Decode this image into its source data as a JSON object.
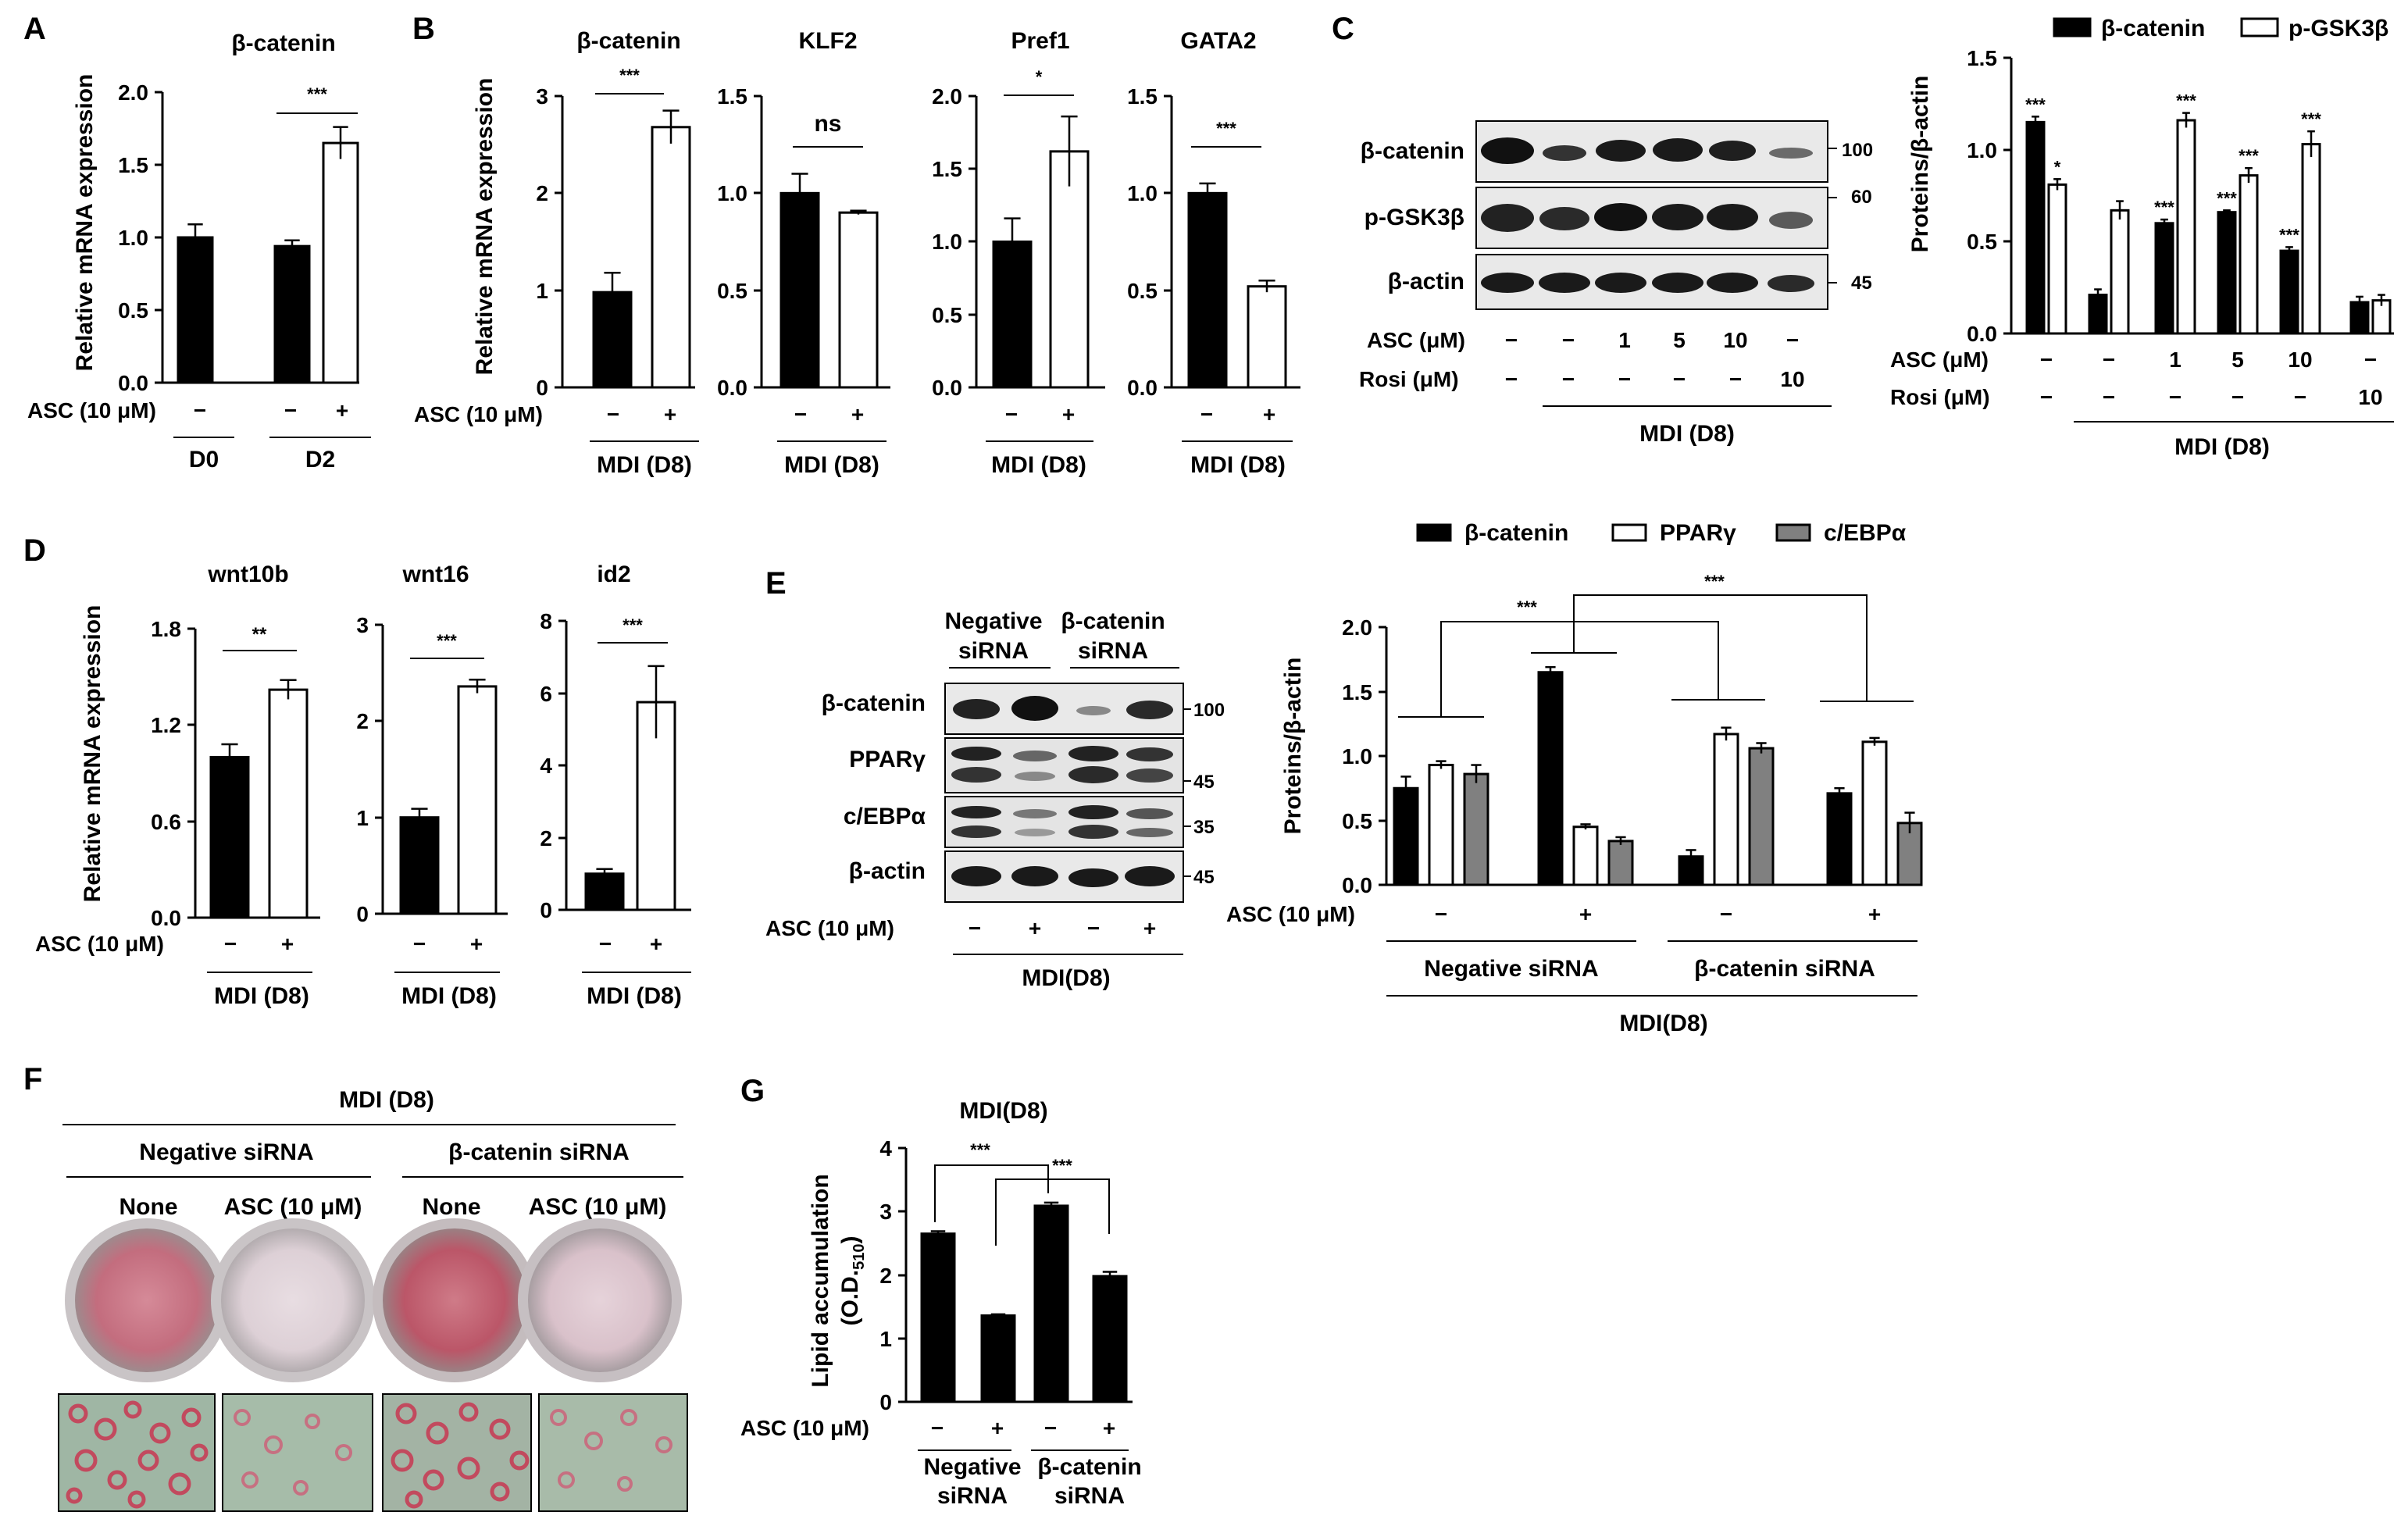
{
  "panel_letters": {
    "a": "A",
    "b": "B",
    "c": "C",
    "d": "D",
    "e": "E",
    "f": "F",
    "g": "G"
  },
  "y_label_rel_mrna": "Relative mRNA expression",
  "y_label_proteins": "Proteins/β-actin",
  "y_label_lipid": "Lipid accumulation",
  "y_label_lipid_unit": "(O.D.",
  "y_label_lipid_sub": "510",
  "y_label_lipid_close": ")",
  "asc_label": "ASC (10 μM)",
  "asc_um_label": "ASC (μM)",
  "rosi_um_label": "Rosi (μM)",
  "mdi_d8": "MDI (D8)",
  "mdi_d8_nospace": "MDI(D8)",
  "minus": "−",
  "plus": "+",
  "sig": {
    "one": "*",
    "two": "**",
    "three": "***",
    "ns": "ns"
  },
  "siRNA": {
    "negative": "Negative siRNA",
    "beta": "β-catenin siRNA",
    "negative_l1": "Negative",
    "negative_l2": "siRNA",
    "beta_l1": "β-catenin",
    "beta_l2": "siRNA"
  },
  "colors": {
    "black": "#000000",
    "white": "#ffffff",
    "gray": "#808080"
  },
  "chart_data": [
    {
      "id": "A",
      "type": "bar",
      "title": "β-catenin",
      "ylabel": "Relative mRNA expression",
      "ylim": [
        0,
        2.0
      ],
      "yticks": [
        "0.0",
        "0.5",
        "1.0",
        "1.5",
        "2.0"
      ],
      "groups": [
        "D0",
        "D2"
      ],
      "asc": [
        "−",
        "−",
        "+"
      ],
      "bars": [
        {
          "value": 1.0,
          "err": 0.09,
          "fill": "black"
        },
        {
          "value": 0.94,
          "err": 0.04,
          "fill": "black"
        },
        {
          "value": 1.65,
          "err": 0.11,
          "fill": "white"
        }
      ],
      "significance": "***"
    },
    {
      "id": "B1",
      "type": "bar",
      "title": "β-catenin",
      "ylabel": "Relative mRNA expression",
      "ylim": [
        0,
        3
      ],
      "yticks": [
        "0",
        "1",
        "2",
        "3"
      ],
      "group": "MDI (D8)",
      "bars": [
        {
          "value": 0.98,
          "err": 0.2,
          "fill": "black"
        },
        {
          "value": 2.68,
          "err": 0.17,
          "fill": "white"
        }
      ],
      "significance": "***"
    },
    {
      "id": "B2",
      "type": "bar",
      "title": "KLF2",
      "ylim": [
        0,
        1.5
      ],
      "yticks": [
        "0.0",
        "0.5",
        "1.0",
        "1.5"
      ],
      "group": "MDI (D8)",
      "bars": [
        {
          "value": 1.0,
          "err": 0.1,
          "fill": "black"
        },
        {
          "value": 0.9,
          "err": 0.01,
          "fill": "white"
        }
      ],
      "significance": "ns"
    },
    {
      "id": "B3",
      "type": "bar",
      "title": "Pref1",
      "ylim": [
        0,
        2.0
      ],
      "yticks": [
        "0.0",
        "0.5",
        "1.0",
        "1.5",
        "2.0"
      ],
      "group": "MDI (D8)",
      "bars": [
        {
          "value": 1.0,
          "err": 0.16,
          "fill": "black"
        },
        {
          "value": 1.62,
          "err": 0.24,
          "fill": "white"
        }
      ],
      "significance": "*"
    },
    {
      "id": "B4",
      "type": "bar",
      "title": "GATA2",
      "ylim": [
        0,
        1.5
      ],
      "yticks": [
        "0.0",
        "0.5",
        "1.0",
        "1.5"
      ],
      "group": "MDI (D8)",
      "bars": [
        {
          "value": 1.0,
          "err": 0.05,
          "fill": "black"
        },
        {
          "value": 0.52,
          "err": 0.03,
          "fill": "white"
        }
      ],
      "significance": "***"
    },
    {
      "id": "C-blot",
      "type": "western-blot",
      "bands": [
        "β-catenin",
        "p-GSK3β",
        "β-actin"
      ],
      "mw": [
        "100",
        "60",
        "45"
      ],
      "asc_um": [
        "−",
        "−",
        "1",
        "5",
        "10",
        "−"
      ],
      "rosi_um": [
        "−",
        "−",
        "−",
        "−",
        "−",
        "10"
      ],
      "group": "MDI (D8)"
    },
    {
      "id": "C",
      "type": "bar",
      "ylabel": "Proteins/β-actin",
      "ylim": [
        0,
        1.5
      ],
      "yticks": [
        "0.0",
        "0.5",
        "1.0",
        "1.5"
      ],
      "legend": [
        "β-catenin",
        "p-GSK3β"
      ],
      "legend_position": "top",
      "asc_um": [
        "−",
        "−",
        "1",
        "5",
        "10",
        "−"
      ],
      "rosi_um": [
        "−",
        "−",
        "−",
        "−",
        "−",
        "10"
      ],
      "group": "MDI (D8)",
      "series": [
        {
          "name": "β-catenin",
          "fill": "black",
          "values": [
            1.15,
            0.21,
            0.6,
            0.66,
            0.45,
            0.17
          ],
          "err": [
            0.03,
            0.03,
            0.02,
            0.01,
            0.02,
            0.03
          ],
          "sig": [
            "***",
            "",
            "***",
            "***",
            "***",
            ""
          ]
        },
        {
          "name": "p-GSK3β",
          "fill": "white",
          "values": [
            0.81,
            0.67,
            1.16,
            0.86,
            1.03,
            0.18
          ],
          "err": [
            0.03,
            0.05,
            0.04,
            0.04,
            0.07,
            0.03
          ],
          "sig": [
            "*",
            "",
            "***",
            "***",
            "***",
            ""
          ]
        }
      ]
    },
    {
      "id": "D1",
      "type": "bar",
      "title": "wnt10b",
      "ylabel": "Relative mRNA expression",
      "ylim": [
        0,
        1.8
      ],
      "yticks": [
        "0.0",
        "0.6",
        "1.2",
        "1.8"
      ],
      "group": "MDI (D8)",
      "bars": [
        {
          "value": 1.0,
          "err": 0.08,
          "fill": "black"
        },
        {
          "value": 1.42,
          "err": 0.06,
          "fill": "white"
        }
      ],
      "significance": "**"
    },
    {
      "id": "D2",
      "type": "bar",
      "title": "wnt16",
      "ylim": [
        0,
        3
      ],
      "yticks": [
        "0",
        "1",
        "2",
        "3"
      ],
      "group": "MDI (D8)",
      "bars": [
        {
          "value": 1.0,
          "err": 0.09,
          "fill": "black"
        },
        {
          "value": 2.36,
          "err": 0.07,
          "fill": "white"
        }
      ],
      "significance": "***"
    },
    {
      "id": "D3",
      "type": "bar",
      "title": "id2",
      "ylim": [
        0,
        8
      ],
      "yticks": [
        "0",
        "2",
        "4",
        "6",
        "8"
      ],
      "group": "MDI (D8)",
      "bars": [
        {
          "value": 1.0,
          "err": 0.13,
          "fill": "black"
        },
        {
          "value": 5.75,
          "err": 1.0,
          "fill": "white"
        }
      ],
      "significance": "***"
    },
    {
      "id": "E-blot",
      "type": "western-blot",
      "bands": [
        "β-catenin",
        "PPARγ",
        "c/EBPα",
        "β-actin"
      ],
      "mw": [
        "100",
        "45",
        "35",
        "45"
      ],
      "headers": [
        "Negative siRNA",
        "β-catenin siRNA"
      ],
      "asc": [
        "−",
        "+",
        "−",
        "+"
      ],
      "group": "MDI(D8)"
    },
    {
      "id": "E",
      "type": "bar",
      "ylabel": "Proteins/β-actin",
      "ylim": [
        0,
        2.0
      ],
      "yticks": [
        "0.0",
        "0.5",
        "1.0",
        "1.5",
        "2.0"
      ],
      "legend": [
        "β-catenin",
        "PPARγ",
        "c/EBPα"
      ],
      "legend_position": "top",
      "asc": [
        "−",
        "+",
        "−",
        "+"
      ],
      "subgroups": [
        "Negative siRNA",
        "β-catenin siRNA"
      ],
      "group": "MDI(D8)",
      "series": [
        {
          "name": "β-catenin",
          "fill": "black",
          "values": [
            0.75,
            1.65,
            0.22,
            0.71
          ],
          "err": [
            0.09,
            0.04,
            0.05,
            0.04
          ]
        },
        {
          "name": "PPARγ",
          "fill": "white",
          "values": [
            0.93,
            0.45,
            1.17,
            1.11
          ],
          "err": [
            0.03,
            0.02,
            0.05,
            0.03
          ]
        },
        {
          "name": "c/EBPα",
          "fill": "gray",
          "values": [
            0.86,
            0.34,
            1.06,
            0.48
          ],
          "err": [
            0.07,
            0.03,
            0.04,
            0.08
          ]
        }
      ],
      "significance": "***"
    },
    {
      "id": "F",
      "type": "images",
      "title": "MDI (D8)",
      "groups": [
        "Negative siRNA",
        "β-catenin siRNA"
      ],
      "labels": [
        "None",
        "ASC (10 μM)",
        "None",
        "ASC (10 μM)"
      ]
    },
    {
      "id": "G",
      "type": "bar",
      "title": "MDI(D8)",
      "ylabel": "Lipid accumulation (O.D.510)",
      "ylim": [
        0,
        4
      ],
      "yticks": [
        "0",
        "1",
        "2",
        "3",
        "4"
      ],
      "asc": [
        "−",
        "+",
        "−",
        "+"
      ],
      "groups": [
        "Negative siRNA",
        "β-catenin siRNA"
      ],
      "bars": [
        {
          "value": 2.65,
          "err": 0.04
        },
        {
          "value": 1.36,
          "err": 0.02
        },
        {
          "value": 3.09,
          "err": 0.05
        },
        {
          "value": 1.98,
          "err": 0.07
        }
      ],
      "significance": "***"
    }
  ]
}
